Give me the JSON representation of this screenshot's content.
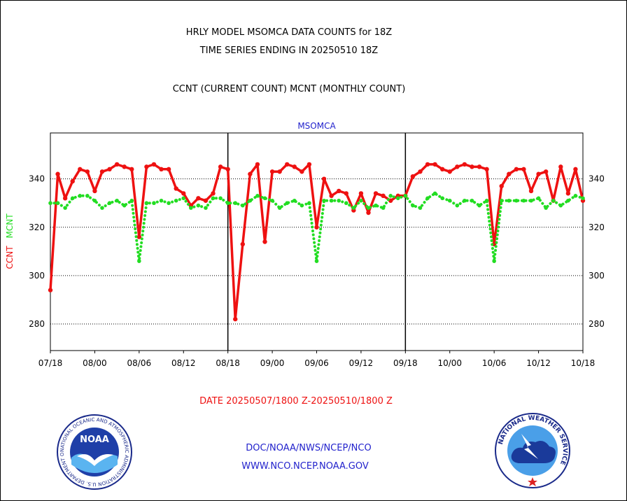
{
  "header": {
    "title_line1": "HRLY MODEL MSOMCA DATA COUNTS for 18Z",
    "title_line2": "TIME SERIES ENDING IN 20250510 18Z",
    "subtitle": "CCNT (CURRENT COUNT) MCNT (MONTHLY COUNT)"
  },
  "footer": {
    "date_range": "DATE 20250507/1800 Z-20250510/1800 Z",
    "org": "DOC/NOAA/NWS/NCEP/NCO",
    "url": "WWW.NCO.NCEP.NOAA.GOV",
    "noaa_logo_label": "NOAA",
    "noaa_ring_text": "NATIONAL OCEANIC AND ATMOSPHERIC ADMINISTRATION U.S. DEPARTMENT OF COMMERCE",
    "nws_ring_text": "NATIONAL WEATHER SERVICE"
  },
  "colors": {
    "ccnt": "#ee1111",
    "mcnt": "#22dd22",
    "axis_title": "#2222cc",
    "date_text": "#ee1111",
    "footer_text": "#2222cc"
  },
  "chart_data": {
    "type": "line",
    "title": "MSOMCA",
    "ylabel_ccnt": "CCNT",
    "ylabel_mcnt": "MCNT",
    "ylim": [
      269,
      359
    ],
    "yticks": [
      280,
      300,
      320,
      340
    ],
    "grid": true,
    "x_tick_labels": [
      "07/18",
      "08/00",
      "08/06",
      "08/12",
      "08/18",
      "09/00",
      "09/06",
      "09/12",
      "09/18",
      "10/00",
      "10/06",
      "10/12",
      "10/18"
    ],
    "day_dividers_hours": [
      24,
      48
    ],
    "x_hours": [
      0,
      1,
      2,
      3,
      4,
      5,
      6,
      7,
      8,
      9,
      10,
      11,
      12,
      13,
      14,
      15,
      16,
      17,
      18,
      19,
      20,
      21,
      22,
      23,
      24,
      25,
      26,
      27,
      28,
      29,
      30,
      31,
      32,
      33,
      34,
      35,
      36,
      37,
      38,
      39,
      40,
      41,
      42,
      43,
      44,
      45,
      46,
      47,
      48,
      49,
      50,
      51,
      52,
      53,
      54,
      55,
      56,
      57,
      58,
      59,
      60,
      61,
      62,
      63,
      64,
      65,
      66,
      67,
      68,
      69,
      70,
      71,
      72
    ],
    "series": [
      {
        "name": "CCNT",
        "style": "solid",
        "values": [
          294,
          342,
          332,
          339,
          344,
          343,
          335,
          343,
          344,
          346,
          345,
          344,
          316,
          345,
          346,
          344,
          344,
          336,
          334,
          329,
          332,
          331,
          334,
          345,
          344,
          282,
          313,
          342,
          346,
          314,
          343,
          343,
          346,
          345,
          343,
          346,
          320,
          340,
          333,
          335,
          334,
          327,
          334,
          326,
          334,
          333,
          331,
          333,
          333,
          341,
          343,
          346,
          346,
          344,
          343,
          345,
          346,
          345,
          345,
          344,
          313,
          337,
          342,
          344,
          344,
          335,
          342,
          343,
          331,
          345,
          334,
          344,
          331
        ]
      },
      {
        "name": "MCNT",
        "style": "dotted",
        "values": [
          330,
          330,
          328,
          332,
          333,
          333,
          331,
          328,
          330,
          331,
          329,
          331,
          306,
          330,
          330,
          331,
          330,
          331,
          332,
          328,
          329,
          328,
          332,
          332,
          330,
          330,
          329,
          331,
          333,
          332,
          331,
          328,
          330,
          331,
          329,
          330,
          306,
          331,
          331,
          331,
          330,
          328,
          331,
          328,
          329,
          328,
          333,
          332,
          333,
          329,
          328,
          332,
          334,
          332,
          331,
          329,
          331,
          331,
          329,
          331,
          306,
          331,
          331,
          331,
          331,
          331,
          332,
          328,
          331,
          329,
          331,
          333,
          332
        ]
      }
    ]
  }
}
